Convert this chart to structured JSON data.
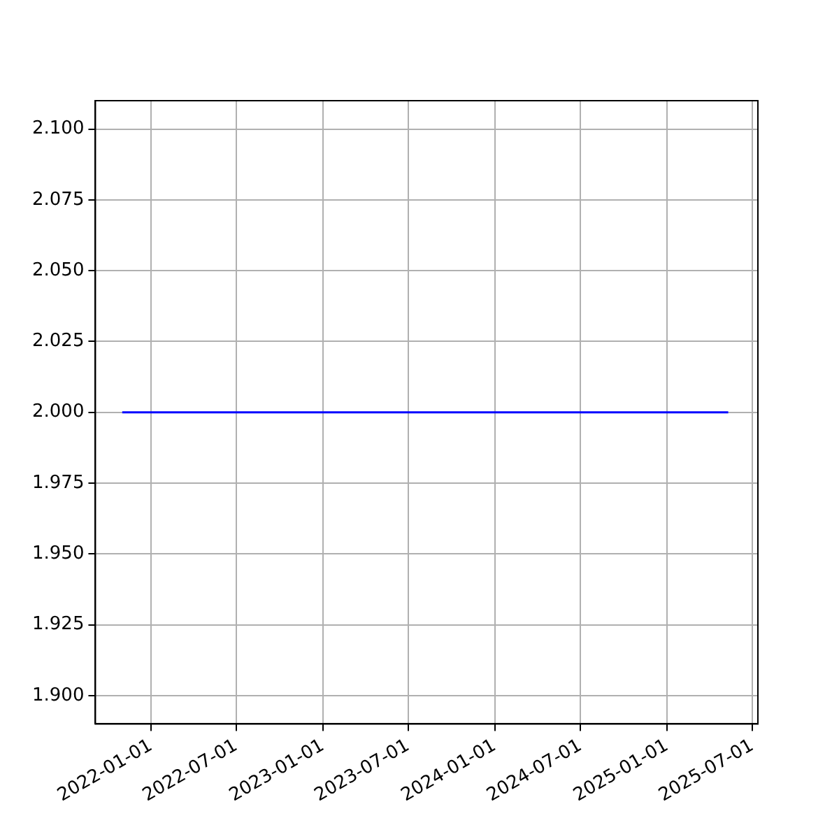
{
  "chart_data": {
    "type": "line",
    "x": [
      "2021-11-01",
      "2025-05-11"
    ],
    "series": [
      {
        "color": "#0000ff",
        "values": [
          2.0,
          2.0
        ]
      }
    ],
    "xlim": [
      "2021-09-05",
      "2025-07-13"
    ],
    "xticks": [
      "2022-01-01",
      "2022-07-01",
      "2023-01-01",
      "2023-07-01",
      "2024-01-01",
      "2024-07-01",
      "2025-01-01",
      "2025-07-01"
    ],
    "ylim": [
      1.89,
      2.11
    ],
    "yticks": [
      {
        "value": 1.9,
        "label": "1.900"
      },
      {
        "value": 1.925,
        "label": "1.925"
      },
      {
        "value": 1.95,
        "label": "1.950"
      },
      {
        "value": 1.975,
        "label": "1.975"
      },
      {
        "value": 2.0,
        "label": "2.000"
      },
      {
        "value": 2.025,
        "label": "2.025"
      },
      {
        "value": 2.05,
        "label": "2.050"
      },
      {
        "value": 2.075,
        "label": "2.075"
      },
      {
        "value": 2.1,
        "label": "2.100"
      }
    ],
    "grid": true,
    "legend": false,
    "marker": "none",
    "line_style": "solid"
  }
}
